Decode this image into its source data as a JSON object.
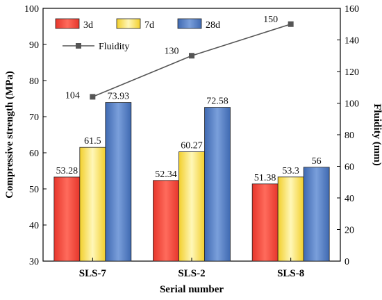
{
  "chart_data": {
    "type": "bar",
    "categories": [
      "SLS-7",
      "SLS-2",
      "SLS-8"
    ],
    "xlabel": "Serial number",
    "ylabel": "Compressive strength (MPa)",
    "ylim": [
      30,
      100
    ],
    "yticks": [
      30,
      40,
      50,
      60,
      70,
      80,
      90,
      100
    ],
    "series": [
      {
        "name": "3d",
        "values": [
          53.28,
          52.34,
          51.38
        ],
        "color": "#e8392c"
      },
      {
        "name": "7d",
        "values": [
          61.5,
          60.27,
          53.3
        ],
        "color": "#f3d437"
      },
      {
        "name": "28d",
        "values": [
          73.93,
          72.58,
          56
        ],
        "color": "#4a73b8"
      }
    ],
    "data_labels": {
      "3d": [
        "53.28",
        "52.34",
        "51.38"
      ],
      "7d": [
        "61.5",
        "60.27",
        "53.3"
      ],
      "28d": [
        "73.93",
        "72.58",
        "56"
      ]
    },
    "secondary_axis": {
      "label": "Fluidity (mm)",
      "ylim": [
        0,
        160
      ],
      "yticks": [
        0,
        20,
        40,
        60,
        80,
        100,
        120,
        140,
        160
      ]
    },
    "line_series": {
      "name": "Fluidity",
      "type": "line",
      "axis": "right",
      "values": [
        104,
        130,
        150
      ],
      "labels": [
        "104",
        "130",
        "150"
      ],
      "color": "#555555"
    },
    "legend": {
      "placement": "top-left"
    },
    "grid": false
  }
}
